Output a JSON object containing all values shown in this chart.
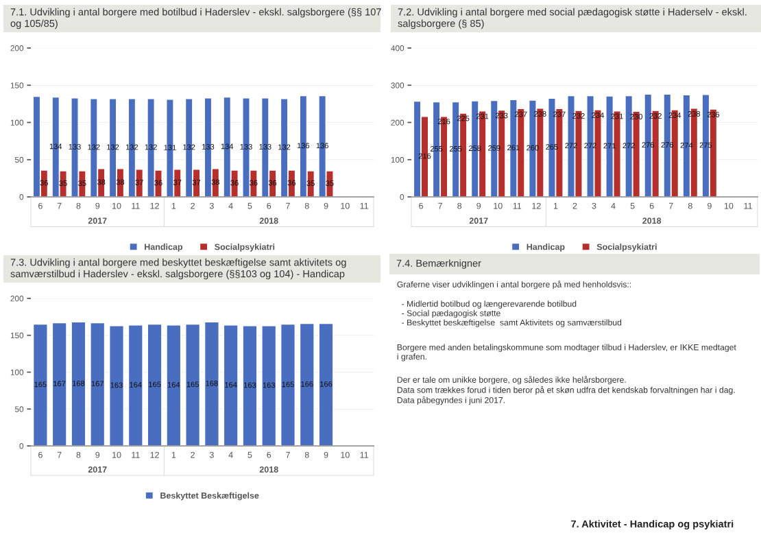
{
  "chart_data": [
    {
      "type": "bar",
      "title": "7.1. Udvikling i antal borgere med botilbud i Haderslev - ekskl. salgsborgere (§§ 107\nog 105/85)",
      "categories": [
        "6",
        "7",
        "8",
        "9",
        "10",
        "11",
        "12",
        "1",
        "2",
        "3",
        "4",
        "5",
        "6",
        "7",
        "8",
        "9",
        "10",
        "11"
      ],
      "ylim": [
        0,
        200
      ],
      "yticks": [
        0,
        50,
        100,
        150,
        200
      ],
      "grid": "y",
      "legend": "bottom",
      "annotations": [
        "2017",
        "2018"
      ],
      "series": [
        {
          "name": "Handicap",
          "color": "#4a6ebf",
          "values": [
            135,
            134,
            133,
            132,
            132,
            132,
            132,
            131,
            132,
            133,
            134,
            133,
            133,
            132,
            136,
            136,
            null,
            null
          ],
          "value_labels": [
            null,
            "134",
            "133",
            "132",
            "132",
            "132",
            "132",
            "131",
            "132",
            "133",
            "134",
            "133",
            "133",
            "132",
            "136",
            "136",
            null,
            null
          ]
        },
        {
          "name": "Socialpsykiatri",
          "color": "#b52f2c",
          "values": [
            36,
            35,
            35,
            38,
            38,
            37,
            36,
            37,
            37,
            38,
            36,
            36,
            36,
            36,
            35,
            35,
            null,
            null
          ],
          "value_labels": [
            "36",
            "35",
            "35",
            "38",
            "38",
            "37",
            "36",
            "37",
            "37",
            "38",
            "36",
            "36",
            "36",
            "36",
            "35",
            "35",
            null,
            null
          ]
        }
      ]
    },
    {
      "type": "bar",
      "title": "7.2. Udvikling i antal borgere med social pædagogisk støtte i Haderselv - ekskl.\nsalgsborgere (§ 85)",
      "categories": [
        "6",
        "7",
        "8",
        "9",
        "10",
        "11",
        "12",
        "1",
        "2",
        "3",
        "4",
        "5",
        "6",
        "7",
        "8",
        "9",
        "10",
        "11"
      ],
      "ylim": [
        0,
        400
      ],
      "yticks": [
        0,
        100,
        200,
        300,
        400
      ],
      "grid": "y",
      "legend": "bottom",
      "annotations": [
        "2017",
        "2018"
      ],
      "series": [
        {
          "name": "Handicap",
          "color": "#4a6ebf",
          "values": [
            257,
            255,
            255,
            258,
            259,
            261,
            260,
            265,
            272,
            272,
            271,
            272,
            276,
            276,
            274,
            275,
            null,
            null
          ],
          "value_labels": [
            null,
            "255",
            "255",
            "258",
            "259",
            "261",
            "260",
            "265",
            "272",
            "272",
            "271",
            "272",
            "276",
            "276",
            "274",
            "275",
            null,
            null
          ]
        },
        {
          "name": "Socialpsykiatri",
          "color": "#b52f2c",
          "values": [
            216,
            216,
            225,
            231,
            233,
            237,
            238,
            237,
            232,
            234,
            231,
            230,
            232,
            234,
            238,
            236,
            null,
            null
          ],
          "value_labels": [
            "216",
            "216",
            "225",
            "231",
            "233",
            "237",
            "238",
            "237",
            "232",
            "234",
            "231",
            "230",
            "232",
            "234",
            "238",
            "236",
            null,
            null
          ]
        }
      ]
    },
    {
      "type": "bar",
      "title": "7.3. Udvikling i antal borgere med beskyttet beskæftigelse samt aktivitets og\nsamværstilbud i Haderslev - ekskl. salgsborgere (§§103 og 104) - Handicap",
      "categories": [
        "6",
        "7",
        "8",
        "9",
        "10",
        "11",
        "12",
        "1",
        "2",
        "3",
        "4",
        "5",
        "6",
        "7",
        "8",
        "9",
        "10",
        "11"
      ],
      "ylim": [
        0,
        200
      ],
      "yticks": [
        0,
        50,
        100,
        150,
        200
      ],
      "grid": "y",
      "legend": "bottom",
      "annotations": [
        "2017",
        "2018"
      ],
      "data_labels": true,
      "series": [
        {
          "name": "Beskyttet Beskæftigelse",
          "color": "#4a6ebf",
          "values": [
            165,
            167,
            168,
            167,
            163,
            164,
            165,
            164,
            165,
            168,
            164,
            163,
            163,
            165,
            166,
            166,
            null,
            null
          ]
        }
      ]
    },
    {
      "type": "other",
      "title": "7.4. Bemærknigner",
      "annotations": [
        "Graferne viser udviklingen i antal borgere på med henholdsvis::",
        "  - Midlertid botilbud og længerevarende botilbud\n  - Social pædagogisk støtte\n  - Beskyttet beskæftigelse  samt Aktivitets og samværstilbud",
        "Borgere med anden betalingskommune som modtager tilbud i Haderslev, er IKKE medtaget\ni grafen.",
        "Der er tale om unikke borgere, og således ikke helårsborgere.\nData som trækkes forud i tiden beror på et skøn udfra det kendskab forvaltningen har i dag.\nData påbegyndes i juni 2017.",
        "7. Aktivitet - Handicap og psykiatri"
      ]
    }
  ]
}
